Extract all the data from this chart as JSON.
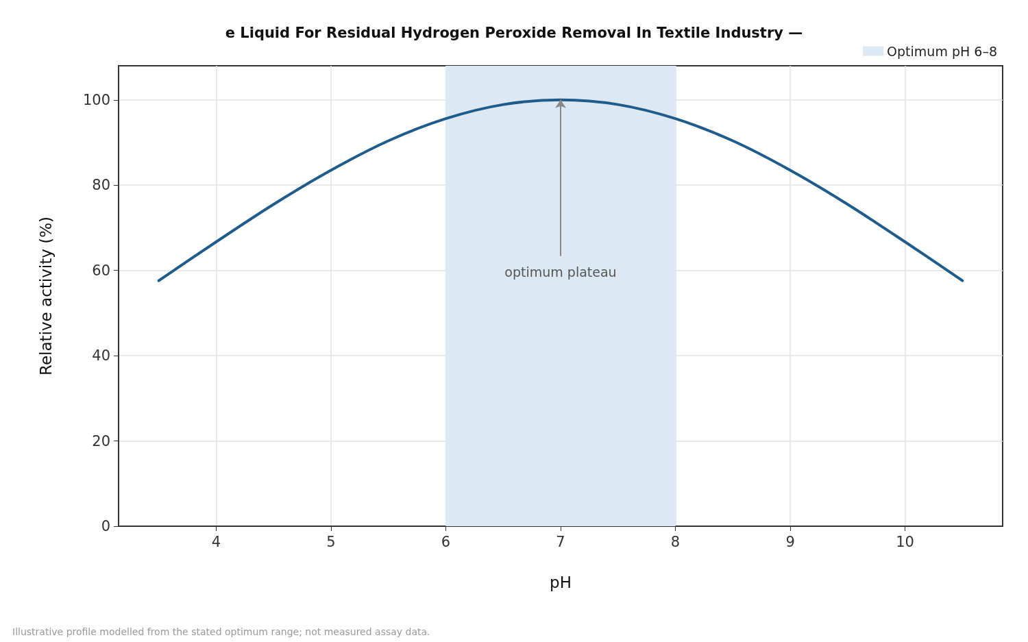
{
  "chart_data": {
    "type": "line",
    "title": "e Liquid For Residual Hydrogen Peroxide Removal In Textile Industry —",
    "xlabel": "pH",
    "ylabel": "Relative activity (%)",
    "x": [
      3.5,
      4,
      4.5,
      5,
      5.5,
      6,
      6.5,
      7,
      7.5,
      8,
      8.5,
      9,
      9.5,
      10,
      10.5
    ],
    "series": [
      {
        "color": "#1f5b8b",
        "values": [
          57.6,
          66.7,
          75.5,
          83.5,
          90.4,
          95.6,
          98.9,
          100,
          98.9,
          95.6,
          90.4,
          83.5,
          75.5,
          66.7,
          57.6
        ]
      }
    ],
    "xlim": [
      3.15,
      10.85
    ],
    "xticks": [
      4,
      5,
      6,
      7,
      8,
      9,
      10
    ],
    "ylim": [
      0,
      108
    ],
    "yticks": [
      0,
      20,
      40,
      60,
      80,
      100
    ],
    "bands": [
      {
        "axis": "x",
        "from": 6,
        "to": 8,
        "label": "Optimum pH 6–8",
        "color": "#dce8f2"
      }
    ],
    "annotations": [
      {
        "text": "optimum plateau",
        "x": 7,
        "y": 100
      },
      "Illustrative profile modelled from the stated optimum range; not measured assay data."
    ],
    "grid": true,
    "legend": "top right",
    "marker": "none",
    "line_style": "solid"
  }
}
